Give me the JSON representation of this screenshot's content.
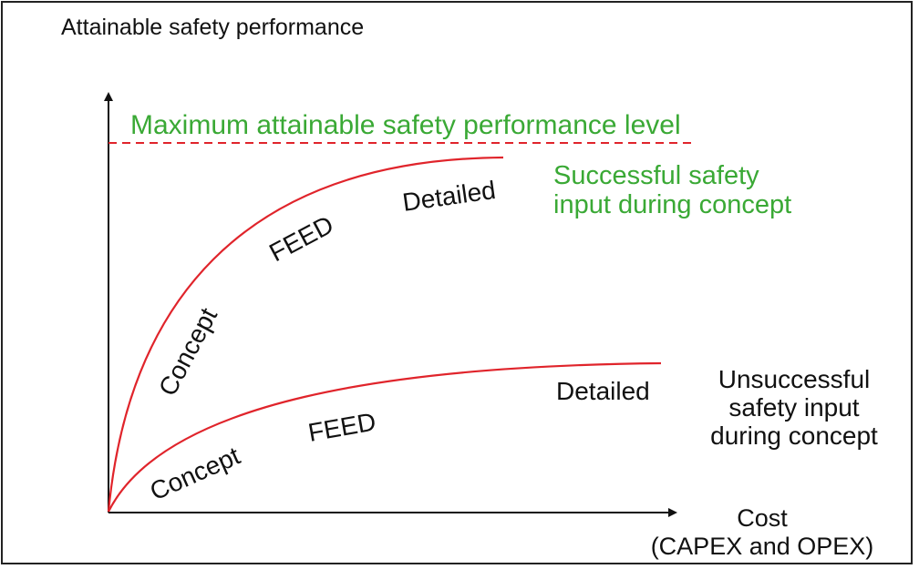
{
  "y_axis_label": "Attainable safety performance",
  "x_axis_label_line1": "Cost",
  "x_axis_label_line2": "(CAPEX and OPEX)",
  "max_level_label": "Maximum attainable safety performance level",
  "successful": {
    "label_line1": "Successful safety",
    "label_line2": "input during concept",
    "phase_concept": "Concept",
    "phase_feed": "FEED",
    "phase_detailed": "Detailed"
  },
  "unsuccessful": {
    "label_line1": "Unsuccessful",
    "label_line2": "safety input",
    "label_line3": "during concept",
    "phase_concept": "Concept",
    "phase_feed": "FEED",
    "phase_detailed": "Detailed"
  },
  "colors": {
    "curve": "#e0242b",
    "max_level": "#e0242b",
    "green_text": "#3aa935",
    "axis": "#111111",
    "text": "#111111"
  }
}
